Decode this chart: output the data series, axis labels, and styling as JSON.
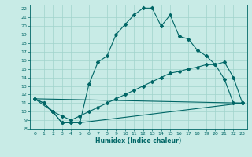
{
  "xlabel": "Humidex (Indice chaleur)",
  "bg_color": "#c8ebe6",
  "grid_color": "#a0d4cc",
  "line_color": "#006666",
  "xlim": [
    -0.5,
    23.5
  ],
  "ylim": [
    8,
    22.5
  ],
  "xticks": [
    0,
    1,
    2,
    3,
    4,
    5,
    6,
    7,
    8,
    9,
    10,
    11,
    12,
    13,
    14,
    15,
    16,
    17,
    18,
    19,
    20,
    21,
    22,
    23
  ],
  "yticks": [
    8,
    9,
    10,
    11,
    12,
    13,
    14,
    15,
    16,
    17,
    18,
    19,
    20,
    21,
    22
  ],
  "line1_x": [
    0,
    1,
    2,
    3,
    4,
    5,
    6,
    7,
    8,
    9,
    10,
    11,
    12,
    13,
    14,
    15,
    16,
    17,
    18,
    19,
    20,
    21,
    22,
    23
  ],
  "line1_y": [
    11.5,
    11.0,
    10.0,
    8.7,
    8.7,
    8.7,
    13.2,
    15.8,
    16.5,
    19.0,
    20.2,
    21.3,
    22.1,
    22.1,
    20.0,
    21.3,
    18.8,
    18.5,
    17.2,
    16.5,
    15.5,
    13.8,
    11.0,
    11.0
  ],
  "line2_x": [
    0,
    1,
    2,
    3,
    4,
    5,
    23
  ],
  "line2_y": [
    11.5,
    11.0,
    10.0,
    8.7,
    8.7,
    8.7,
    11.0
  ],
  "line3_x": [
    0,
    23
  ],
  "line3_y": [
    11.5,
    11.0
  ],
  "line4_x": [
    0,
    2,
    3,
    4,
    5,
    6,
    7,
    8,
    9,
    10,
    11,
    12,
    13,
    14,
    15,
    16,
    17,
    18,
    19,
    20,
    21,
    22,
    23
  ],
  "line4_y": [
    11.5,
    10.0,
    9.5,
    9.0,
    9.5,
    10.0,
    10.5,
    11.0,
    11.5,
    12.0,
    12.5,
    13.0,
    13.5,
    14.0,
    14.5,
    14.7,
    15.0,
    15.2,
    15.5,
    15.5,
    15.8,
    14.0,
    11.0
  ]
}
